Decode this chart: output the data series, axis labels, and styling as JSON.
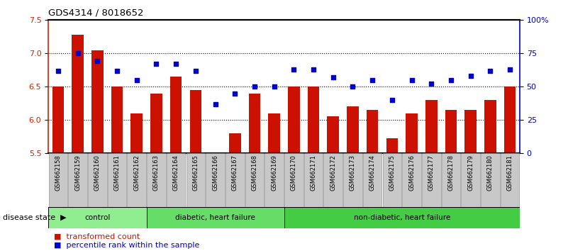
{
  "title": "GDS4314 / 8018652",
  "samples": [
    "GSM662158",
    "GSM662159",
    "GSM662160",
    "GSM662161",
    "GSM662162",
    "GSM662163",
    "GSM662164",
    "GSM662165",
    "GSM662166",
    "GSM662167",
    "GSM662168",
    "GSM662169",
    "GSM662170",
    "GSM662171",
    "GSM662172",
    "GSM662173",
    "GSM662174",
    "GSM662175",
    "GSM662176",
    "GSM662177",
    "GSM662178",
    "GSM662179",
    "GSM662180",
    "GSM662181"
  ],
  "bar_values": [
    6.5,
    7.28,
    7.05,
    6.5,
    6.1,
    6.4,
    6.65,
    6.45,
    5.5,
    5.8,
    6.4,
    6.1,
    6.5,
    6.5,
    6.05,
    6.2,
    6.15,
    5.72,
    6.1,
    6.3,
    6.15,
    6.15,
    6.3,
    6.5
  ],
  "scatter_values": [
    62,
    75,
    69,
    62,
    55,
    67,
    67,
    62,
    37,
    45,
    50,
    50,
    63,
    63,
    57,
    50,
    55,
    40,
    55,
    52,
    55,
    58,
    62,
    63
  ],
  "ylim_left": [
    5.5,
    7.5
  ],
  "ylim_right": [
    0,
    100
  ],
  "yticks_left": [
    5.5,
    6.0,
    6.5,
    7.0,
    7.5
  ],
  "yticks_right": [
    0,
    25,
    50,
    75,
    100
  ],
  "ytick_labels_right": [
    "0",
    "25",
    "50",
    "75",
    "100%"
  ],
  "bar_color": "#CC1100",
  "scatter_color": "#0000CC",
  "groups": [
    {
      "label": "control",
      "start": 0,
      "end": 5,
      "color": "#90EE90"
    },
    {
      "label": "diabetic, heart failure",
      "start": 5,
      "end": 12,
      "color": "#66DD66"
    },
    {
      "label": "non-diabetic, heart failure",
      "start": 12,
      "end": 24,
      "color": "#44CC44"
    }
  ],
  "disease_state_label": "disease state",
  "legend_bar_label": "transformed count",
  "legend_scatter_label": "percentile rank within the sample",
  "bg_color": "#FFFFFF",
  "tick_color_left": "#CC2200",
  "tick_color_right": "#0000CC",
  "xtick_box_color": "#C8C8C8",
  "grid_dotted_color": "#555555",
  "grid_levels": [
    6.0,
    6.5,
    7.0
  ]
}
